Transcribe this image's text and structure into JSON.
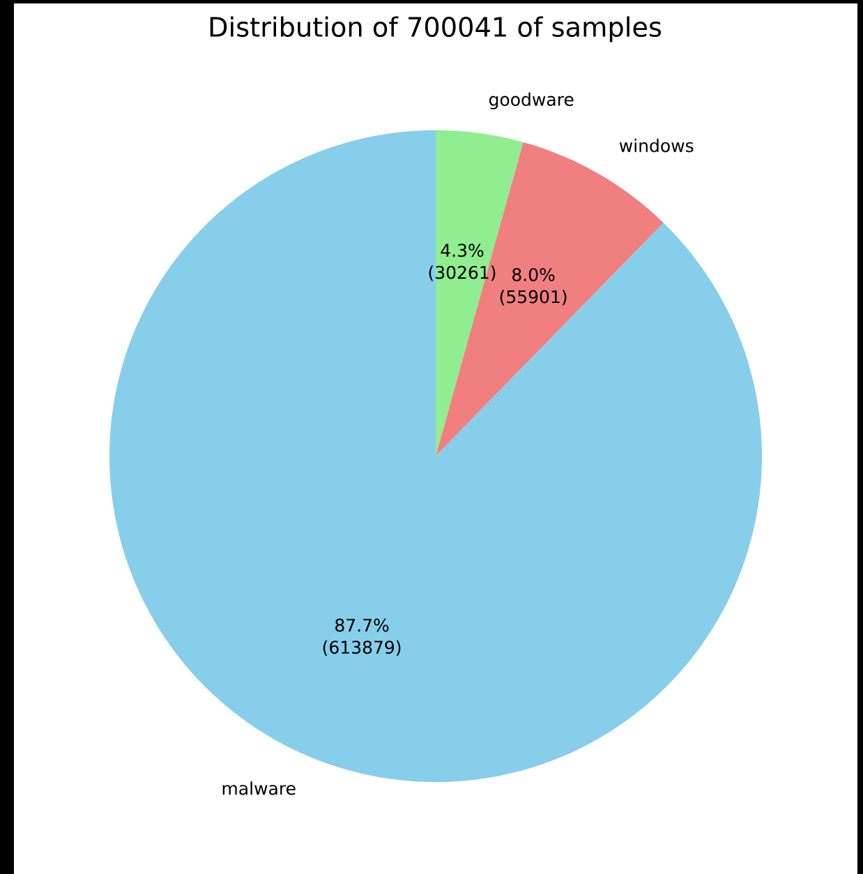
{
  "chart_data": {
    "type": "pie",
    "title": "Distribution of 700041 of samples",
    "categories": [
      "goodware",
      "windows",
      "malware"
    ],
    "values": [
      30261,
      55901,
      613879
    ],
    "colors": [
      "#90ee90",
      "#f08080",
      "#87ceeb"
    ],
    "value_labels": [
      "4.3% (30261)",
      "8.0% (55901)",
      "87.7% (613879)"
    ]
  }
}
